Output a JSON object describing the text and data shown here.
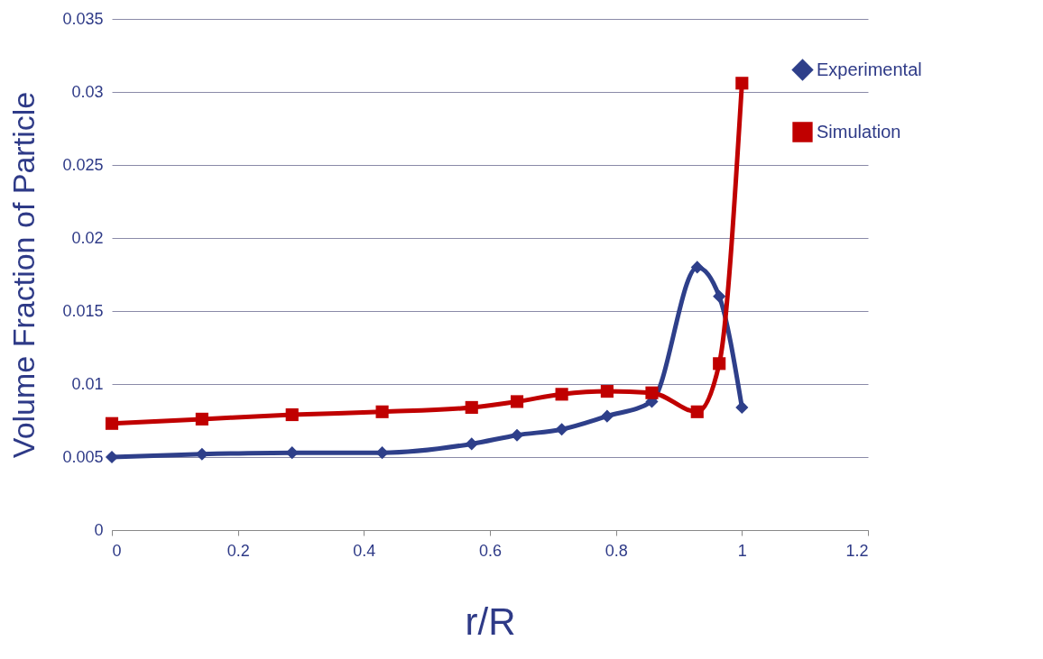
{
  "chart_data": {
    "type": "line",
    "xlabel": "r/R",
    "ylabel": "Volume Fraction of Particle",
    "x": [
      0,
      0.143,
      0.286,
      0.429,
      0.571,
      0.643,
      0.714,
      0.786,
      0.857,
      0.929,
      0.964,
      1.0
    ],
    "series": [
      {
        "name": "Experimental",
        "color": "#2e3f8a",
        "marker": "diamond",
        "values": [
          0.005,
          0.0052,
          0.0053,
          0.0053,
          0.0059,
          0.0065,
          0.0069,
          0.0078,
          0.0088,
          0.018,
          0.016,
          0.0084
        ]
      },
      {
        "name": "Simulation",
        "color": "#c00000",
        "marker": "square",
        "values": [
          0.0073,
          0.0076,
          0.0079,
          0.0081,
          0.0084,
          0.0088,
          0.0093,
          0.0095,
          0.0094,
          0.0081,
          0.0114,
          0.0306
        ]
      }
    ],
    "xlim": [
      0,
      1.2
    ],
    "xticks": [
      0,
      0.2,
      0.4,
      0.6,
      0.8,
      1,
      1.2
    ],
    "ylim": [
      0,
      0.035
    ],
    "yticks": [
      0,
      0.005,
      0.01,
      0.015,
      0.02,
      0.025,
      0.03,
      0.035
    ],
    "grid": "y",
    "legend": "top right",
    "line_style": "solid"
  }
}
